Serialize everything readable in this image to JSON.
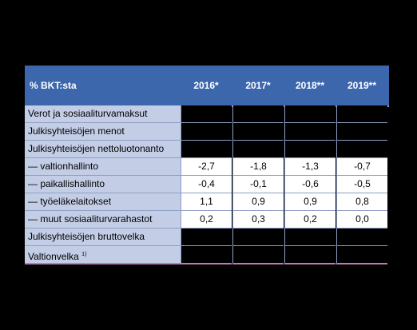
{
  "table": {
    "header": {
      "label": "% BKT:sta",
      "years": [
        "2016*",
        "2017*",
        "2018**",
        "2019**"
      ]
    },
    "rows": [
      {
        "label": "Verot ja sosiaaliturvamaksut",
        "values": [
          "",
          "",
          "",
          ""
        ]
      },
      {
        "label": "Julkisyhteisöjen menot",
        "values": [
          "",
          "",
          "",
          ""
        ]
      },
      {
        "label": "Julkisyhteisöjen nettoluotonanto",
        "values": [
          "",
          "",
          "",
          ""
        ]
      },
      {
        "label": "— valtionhallinto",
        "values": [
          "-2,7",
          "-1,8",
          "-1,3",
          "-0,7"
        ]
      },
      {
        "label": "— paikallishallinto",
        "values": [
          "-0,4",
          "-0,1",
          "-0,6",
          "-0,5"
        ]
      },
      {
        "label": "— työeläkelaitokset",
        "values": [
          "1,1",
          "0,9",
          "0,9",
          "0,8"
        ]
      },
      {
        "label": "— muut sosiaaliturvarahastot",
        "values": [
          "0,2",
          "0,3",
          "0,2",
          "0,0"
        ]
      },
      {
        "label": "Julkisyhteisöjen bruttovelka",
        "values": [
          "",
          "",
          "",
          ""
        ]
      },
      {
        "label": "Valtionvelka",
        "sup": "1)",
        "values": [
          "",
          "",
          "",
          ""
        ]
      }
    ]
  }
}
